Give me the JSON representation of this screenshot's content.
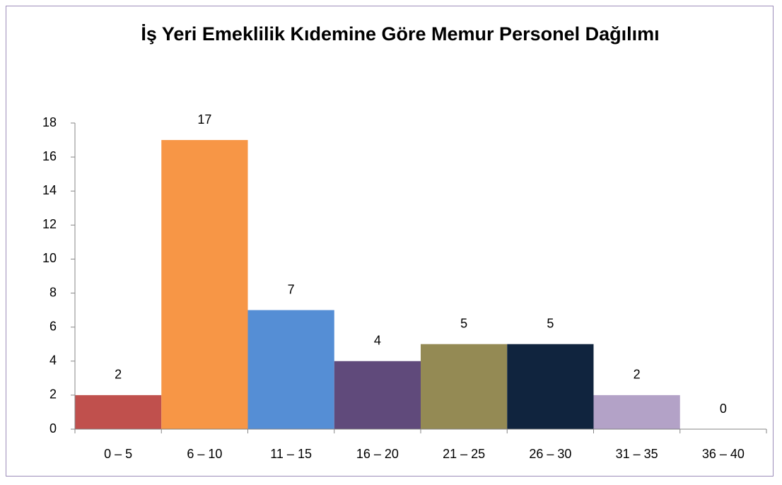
{
  "chart_data": {
    "type": "bar",
    "title": "İş Yeri Emeklilik Kıdemine Göre Memur Personel Dağılımı",
    "categories": [
      "0 – 5",
      "6 – 10",
      "11 – 15",
      "16 – 20",
      "21 – 25",
      "26 – 30",
      "31 – 35",
      "36 – 40"
    ],
    "values": [
      2,
      17,
      7,
      4,
      5,
      5,
      2,
      0
    ],
    "colors": [
      "#c0504d",
      "#f79646",
      "#558ed5",
      "#604a7b",
      "#948a54",
      "#10243e",
      "#b3a2c7",
      "#4bacc6"
    ],
    "ylim": [
      0,
      18
    ],
    "yticks": [
      0,
      2,
      4,
      6,
      8,
      10,
      12,
      14,
      16,
      18
    ],
    "grid": false
  }
}
